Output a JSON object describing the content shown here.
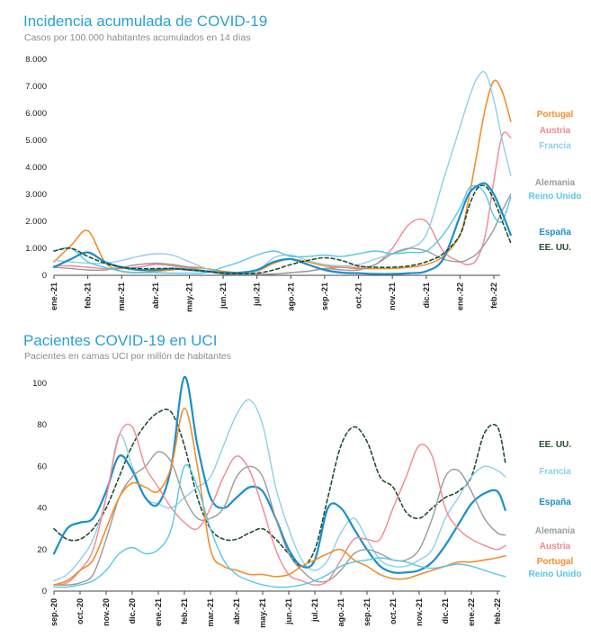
{
  "colors": {
    "Portugal": "#f28e2b",
    "Austria": "#f4868f",
    "Francia": "#8fcfe8",
    "Alemania": "#9a9a9a",
    "Reino Unido": "#55c7e8",
    "España": "#1a8fc9",
    "EE. UU.": "#1f4e2f"
  },
  "chart_data": [
    {
      "type": "line",
      "title": "Incidencia acumulada de COVID-19",
      "subtitle": "Casos por 100.000 habitantes acumulados en 14 días",
      "ylim": [
        0,
        8000
      ],
      "yticks": [
        "0",
        "1.000",
        "2.000",
        "3.000",
        "4.000",
        "5.000",
        "6.000",
        "7.000",
        "8.000"
      ],
      "xticks": [
        "ene.-21",
        "feb.-21",
        "mar.-21",
        "abr.-21",
        "may.-21",
        "jun.-21",
        "jul.-21",
        "ago.-21",
        "sep.-21",
        "oct.-21",
        "nov.-21",
        "dic.-21",
        "ene.-22",
        "feb.-22"
      ],
      "x": [
        0,
        0.5,
        1,
        1.5,
        2,
        2.5,
        3,
        3.5,
        4,
        4.5,
        5,
        5.5,
        6,
        6.5,
        7,
        7.5,
        8,
        8.5,
        9,
        9.5,
        10,
        10.5,
        11,
        11.5,
        12,
        12.25,
        12.5,
        12.75,
        13,
        13.25,
        13.5
      ],
      "series": [
        {
          "name": "Portugal",
          "dash": false,
          "width": 1.6,
          "values": [
            500,
            1100,
            1650,
            500,
            150,
            100,
            150,
            200,
            300,
            250,
            150,
            100,
            150,
            450,
            600,
            500,
            350,
            300,
            250,
            250,
            250,
            300,
            400,
            700,
            1500,
            2800,
            4500,
            6200,
            7200,
            6800,
            5700
          ]
        },
        {
          "name": "Austria",
          "dash": false,
          "width": 1.4,
          "values": [
            350,
            350,
            300,
            250,
            250,
            300,
            400,
            350,
            250,
            150,
            80,
            50,
            50,
            50,
            100,
            150,
            250,
            300,
            300,
            400,
            1000,
            1900,
            2000,
            900,
            500,
            400,
            600,
            1500,
            3500,
            5200,
            5100
          ]
        },
        {
          "name": "Francia",
          "dash": false,
          "width": 1.4,
          "values": [
            550,
            500,
            450,
            450,
            550,
            700,
            800,
            750,
            500,
            250,
            100,
            80,
            150,
            650,
            750,
            550,
            400,
            350,
            400,
            600,
            800,
            1000,
            1500,
            3500,
            5500,
            6500,
            7300,
            7500,
            6500,
            5000,
            3700
          ]
        },
        {
          "name": "Alemania",
          "dash": false,
          "width": 1.4,
          "values": [
            300,
            250,
            200,
            200,
            300,
            400,
            450,
            400,
            300,
            150,
            50,
            30,
            30,
            50,
            100,
            150,
            250,
            200,
            200,
            400,
            800,
            1000,
            900,
            600,
            500,
            600,
            800,
            1200,
            1700,
            2400,
            3000
          ]
        },
        {
          "name": "Reino Unido",
          "dash": false,
          "width": 1.4,
          "values": [
            900,
            1000,
            500,
            300,
            150,
            100,
            100,
            80,
            80,
            100,
            300,
            500,
            750,
            900,
            700,
            700,
            750,
            700,
            800,
            900,
            800,
            850,
            900,
            1500,
            2500,
            3200,
            3300,
            3000,
            2200,
            2000,
            2900
          ]
        },
        {
          "name": "España",
          "dash": false,
          "width": 2.2,
          "values": [
            300,
            600,
            850,
            500,
            300,
            200,
            200,
            250,
            200,
            150,
            100,
            100,
            200,
            500,
            600,
            400,
            200,
            100,
            80,
            50,
            50,
            80,
            150,
            600,
            2200,
            3000,
            3300,
            3400,
            3000,
            2300,
            1500
          ]
        },
        {
          "name": "EE. UU.",
          "dash": true,
          "width": 1.6,
          "values": [
            900,
            1000,
            700,
            450,
            300,
            250,
            250,
            250,
            200,
            150,
            80,
            60,
            80,
            200,
            400,
            550,
            650,
            550,
            350,
            300,
            300,
            350,
            500,
            800,
            1500,
            2500,
            3200,
            3300,
            2800,
            2000,
            1200
          ]
        }
      ],
      "labels": [
        {
          "name": "Portugal",
          "text": "Portugal"
        },
        {
          "name": "Austria",
          "text": "Austria"
        },
        {
          "name": "Francia",
          "text": "Francia"
        },
        {
          "name": "Alemania",
          "text": "Alemania"
        },
        {
          "name": "Reino Unido",
          "text": "Reino Unido"
        },
        {
          "name": "España",
          "text": "España"
        },
        {
          "name": "EE. UU.",
          "text": "EE. UU."
        }
      ]
    },
    {
      "type": "line",
      "title": "Pacientes COVID-19 en UCI",
      "subtitle": "Pacientes en camas UCI por millón de habitantes",
      "ylim": [
        0,
        100
      ],
      "yticks": [
        "0",
        "20",
        "40",
        "60",
        "80",
        "100"
      ],
      "xticks": [
        "sep.-20",
        "oct.-20",
        "nov.-20",
        "dic.-20",
        "ene.-21",
        "feb.-21",
        "mar.-21",
        "abr.-21",
        "may.-21",
        "jun.-21",
        "jul.-21",
        "ago.-21",
        "sep.-21",
        "oct.-21",
        "nov.-21",
        "dic.-21",
        "ene.-22",
        "feb.-22"
      ],
      "x": [
        0,
        0.5,
        1,
        1.5,
        2,
        2.5,
        3,
        3.5,
        4,
        4.5,
        5,
        5.5,
        6,
        6.5,
        7,
        7.5,
        8,
        8.5,
        9,
        9.5,
        10,
        10.5,
        11,
        11.5,
        12,
        12.5,
        13,
        13.5,
        14,
        14.5,
        15,
        15.5,
        16,
        16.5,
        17,
        17.3
      ],
      "series": [
        {
          "name": "EE. UU.",
          "dash": true,
          "width": 1.6,
          "values": [
            30,
            25,
            25,
            30,
            40,
            55,
            70,
            80,
            86,
            86,
            70,
            45,
            30,
            25,
            25,
            28,
            30,
            25,
            18,
            12,
            20,
            45,
            70,
            79,
            72,
            55,
            50,
            38,
            35,
            40,
            45,
            48,
            55,
            76,
            79,
            62
          ]
        },
        {
          "name": "Francia",
          "dash": false,
          "width": 1.4,
          "values": [
            5,
            8,
            15,
            25,
            45,
            75,
            60,
            45,
            42,
            40,
            45,
            50,
            55,
            70,
            85,
            92,
            80,
            50,
            30,
            15,
            10,
            15,
            28,
            35,
            25,
            15,
            12,
            12,
            15,
            20,
            35,
            45,
            55,
            60,
            58,
            55
          ]
        },
        {
          "name": "España",
          "dash": false,
          "width": 2.2,
          "values": [
            18,
            30,
            33,
            35,
            48,
            65,
            58,
            45,
            42,
            60,
            103,
            70,
            45,
            40,
            45,
            50,
            48,
            35,
            20,
            12,
            15,
            40,
            40,
            30,
            20,
            12,
            9,
            9,
            10,
            14,
            22,
            32,
            42,
            47,
            48,
            39
          ]
        },
        {
          "name": "Alemania",
          "dash": false,
          "width": 1.4,
          "values": [
            3,
            3,
            4,
            8,
            25,
            45,
            55,
            60,
            67,
            62,
            45,
            35,
            35,
            40,
            55,
            60,
            55,
            35,
            18,
            10,
            5,
            5,
            10,
            18,
            20,
            18,
            15,
            15,
            20,
            35,
            55,
            58,
            48,
            35,
            28,
            27
          ]
        },
        {
          "name": "Austria",
          "dash": false,
          "width": 1.4,
          "values": [
            3,
            4,
            10,
            20,
            45,
            75,
            79,
            60,
            50,
            40,
            33,
            30,
            40,
            55,
            65,
            58,
            40,
            20,
            8,
            5,
            3,
            5,
            15,
            25,
            25,
            25,
            40,
            55,
            70,
            65,
            40,
            30,
            25,
            22,
            20,
            22
          ]
        },
        {
          "name": "Portugal",
          "dash": false,
          "width": 1.6,
          "values": [
            3,
            5,
            10,
            15,
            30,
            45,
            52,
            50,
            48,
            60,
            88,
            60,
            20,
            12,
            10,
            8,
            8,
            7,
            8,
            12,
            15,
            18,
            20,
            15,
            12,
            8,
            6,
            6,
            8,
            10,
            12,
            14,
            14,
            15,
            16,
            17
          ]
        },
        {
          "name": "Reino Unido",
          "dash": false,
          "width": 1.4,
          "values": [
            2,
            2,
            3,
            5,
            10,
            18,
            21,
            18,
            20,
            30,
            60,
            50,
            30,
            15,
            8,
            5,
            3,
            2,
            2,
            3,
            5,
            8,
            12,
            14,
            15,
            16,
            15,
            14,
            12,
            11,
            12,
            13,
            12,
            10,
            8,
            7
          ]
        }
      ],
      "labels": [
        {
          "name": "EE. UU.",
          "text": "EE. UU."
        },
        {
          "name": "Francia",
          "text": "Francia"
        },
        {
          "name": "España",
          "text": "España"
        },
        {
          "name": "Alemania",
          "text": "Alemania"
        },
        {
          "name": "Austria",
          "text": "Austria"
        },
        {
          "name": "Portugal",
          "text": "Portugal"
        },
        {
          "name": "Reino Unido",
          "text": "Reino Unido"
        }
      ]
    }
  ]
}
